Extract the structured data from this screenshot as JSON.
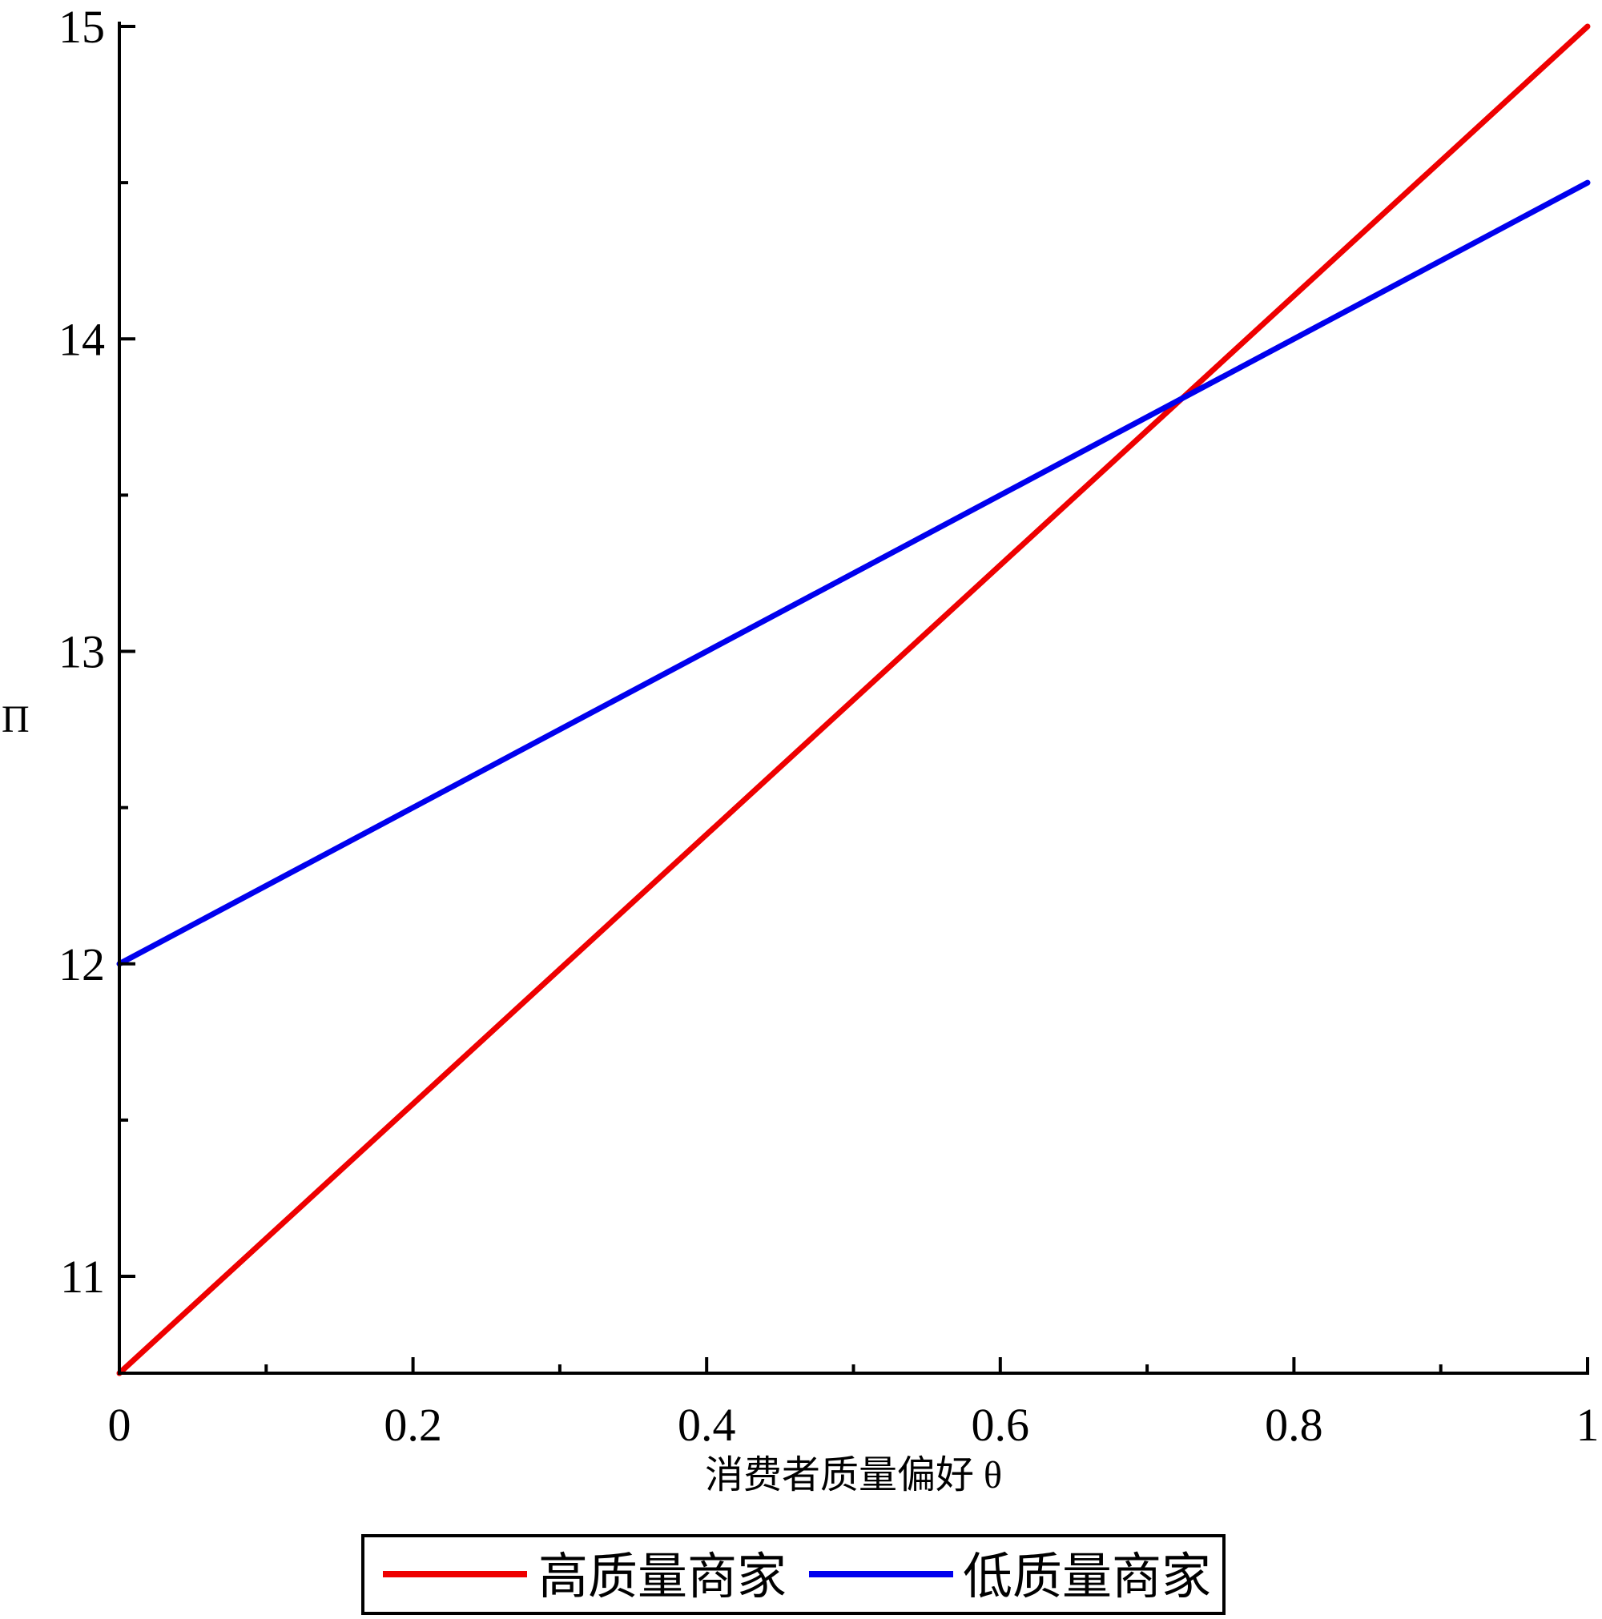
{
  "chart_data": {
    "type": "line",
    "xlabel": "消费者质量偏好 θ",
    "ylabel": "Π",
    "xlim": [
      0,
      1
    ],
    "ylim": [
      10.69,
      15
    ],
    "x_ticks": [
      0,
      0.2,
      0.4,
      0.6,
      0.8,
      1
    ],
    "x_tick_labels": [
      "0",
      "0.2",
      "0.4",
      "0.6",
      "0.8",
      "1"
    ],
    "x_minor_ticks": [
      0.1,
      0.3,
      0.5,
      0.7,
      0.9
    ],
    "y_ticks": [
      11,
      12,
      13,
      14,
      15
    ],
    "y_tick_labels": [
      "11",
      "12",
      "13",
      "14",
      "15"
    ],
    "y_minor_ticks": [
      11.5,
      12.5,
      13.5,
      14.5
    ],
    "grid": false,
    "legend_position": "bottom",
    "series": [
      {
        "name": "高质量商家",
        "color": "#ee0000",
        "x": [
          0,
          1
        ],
        "values": [
          10.69,
          15
        ]
      },
      {
        "name": "低质量商家",
        "color": "#0000ee",
        "x": [
          0,
          1
        ],
        "values": [
          12,
          14.5
        ]
      }
    ]
  }
}
